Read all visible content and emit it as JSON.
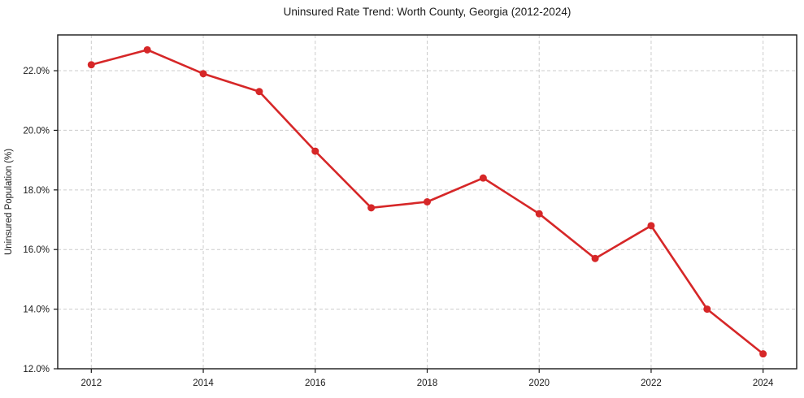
{
  "chart_data": {
    "type": "line",
    "title": "Uninsured Rate Trend: Worth County, Georgia (2012-2024)",
    "xlabel": "",
    "ylabel": "Uninsured Population (%)",
    "x": [
      2012,
      2013,
      2014,
      2015,
      2016,
      2017,
      2018,
      2019,
      2020,
      2021,
      2022,
      2023,
      2024
    ],
    "values": [
      22.2,
      22.7,
      21.9,
      21.3,
      19.3,
      17.4,
      17.6,
      18.4,
      17.2,
      15.7,
      16.8,
      14.0,
      12.5
    ],
    "x_ticks": [
      2012,
      2014,
      2016,
      2018,
      2020,
      2022,
      2024
    ],
    "x_tick_labels": [
      "2012",
      "2014",
      "2016",
      "2018",
      "2020",
      "2022",
      "2024"
    ],
    "y_ticks": [
      12,
      14,
      16,
      18,
      20,
      22
    ],
    "y_tick_labels": [
      "12.0%",
      "14.0%",
      "16.0%",
      "18.0%",
      "20.0%",
      "22.0%"
    ],
    "xlim": [
      2011.4,
      2024.6
    ],
    "ylim": [
      12.0,
      23.2
    ],
    "grid": true,
    "legend": "none",
    "line_color": "#d62728",
    "marker": "circle",
    "grid_color": "#cccccc",
    "spine_color": "#1a1a1a"
  }
}
